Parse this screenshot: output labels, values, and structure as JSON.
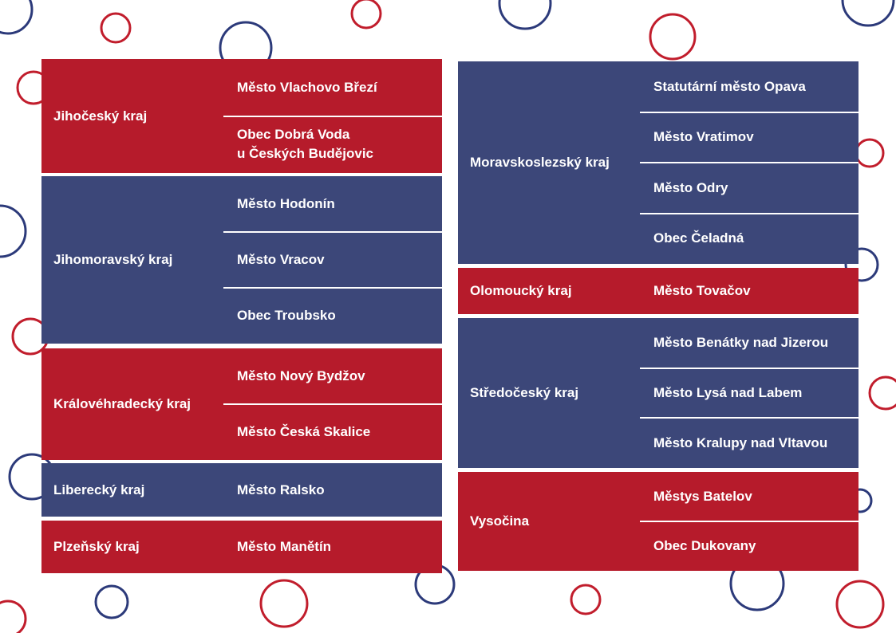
{
  "colors": {
    "red": "#b61b2b",
    "blue": "#3c4779",
    "circle_red": "#c11d2c",
    "circle_blue": "#2c3a7a"
  },
  "left_table": [
    {
      "region": "Jihočeský kraj",
      "color": "red",
      "municipalities": [
        "Město Vlachovo Březí",
        "Obec Dobrá Voda\nu Českých Budějovic"
      ]
    },
    {
      "region": "Jihomoravský kraj",
      "color": "blue",
      "municipalities": [
        "Město Hodonín",
        "Město Vracov",
        "Obec Troubsko"
      ]
    },
    {
      "region": "Královéhradecký kraj",
      "color": "red",
      "municipalities": [
        "Město Nový Bydžov",
        "Město Česká Skalice"
      ]
    },
    {
      "region": "Liberecký kraj",
      "color": "blue",
      "municipalities": [
        "Město Ralsko"
      ]
    },
    {
      "region": "Plzeňský kraj",
      "color": "red",
      "municipalities": [
        "Město Manětín"
      ]
    }
  ],
  "right_table": [
    {
      "region": "Moravskoslezský kraj",
      "color": "blue",
      "municipalities": [
        "Statutární město Opava",
        "Město Vratimov",
        "Město Odry",
        "Obec Čeladná"
      ]
    },
    {
      "region": "Olomoucký kraj",
      "color": "red",
      "municipalities": [
        "Město Tovačov"
      ]
    },
    {
      "region": "Středočeský kraj",
      "color": "blue",
      "municipalities": [
        "Město Benátky nad Jizerou",
        "Město Lysá nad Labem",
        "Město Kralupy nad Vltavou"
      ]
    },
    {
      "region": "Vysočina",
      "color": "red",
      "municipalities": [
        "Městys Batelov",
        "Obec Dukovany"
      ]
    }
  ]
}
